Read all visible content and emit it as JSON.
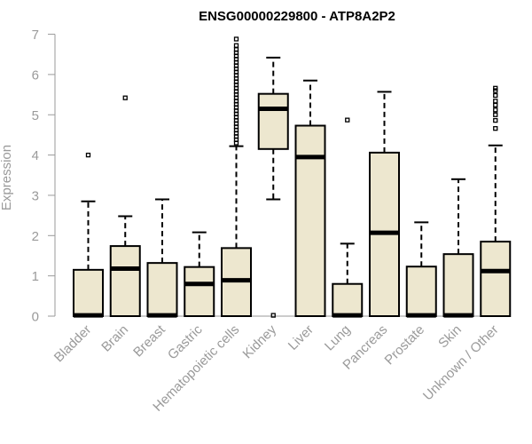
{
  "chart_data": {
    "type": "boxplot",
    "title": "ENSG00000229800 - ATP8A2P2",
    "xlabel": "",
    "ylabel": "Expression",
    "ylim": [
      0,
      7
    ],
    "yticks": [
      0,
      1,
      2,
      3,
      4,
      5,
      6,
      7
    ],
    "box_fill": "#ede7cf",
    "categories": [
      "Bladder",
      "Brain",
      "Breast",
      "Gastric",
      "Hematopoietic cells",
      "Kidney",
      "Liver",
      "Lung",
      "Pancreas",
      "Prostate",
      "Skin",
      "Unknown / Other"
    ],
    "boxes": [
      {
        "name": "Bladder",
        "whisker_low": 0,
        "q1": 0,
        "median": 0.02,
        "q3": 1.15,
        "whisker_high": 2.85,
        "outliers": [
          4.0
        ]
      },
      {
        "name": "Brain",
        "whisker_low": 0,
        "q1": 0,
        "median": 1.18,
        "q3": 1.74,
        "whisker_high": 2.48,
        "outliers": [
          5.42
        ]
      },
      {
        "name": "Breast",
        "whisker_low": 0,
        "q1": 0,
        "median": 0.02,
        "q3": 1.32,
        "whisker_high": 2.9,
        "outliers": []
      },
      {
        "name": "Gastric",
        "whisker_low": 0,
        "q1": 0,
        "median": 0.8,
        "q3": 1.22,
        "whisker_high": 2.08,
        "outliers": []
      },
      {
        "name": "Hematopoietic cells",
        "whisker_low": 0,
        "q1": 0,
        "median": 0.89,
        "q3": 1.69,
        "whisker_high": 4.22,
        "outliers": [
          4.3,
          4.38,
          4.46,
          4.54,
          4.62,
          4.7,
          4.78,
          4.86,
          4.94,
          5.02,
          5.1,
          5.18,
          5.26,
          5.34,
          5.42,
          5.5,
          5.58,
          5.66,
          5.74,
          5.82,
          5.9,
          5.98,
          6.06,
          6.14,
          6.22,
          6.3,
          6.38,
          6.46,
          6.54,
          6.62,
          6.72,
          6.88
        ]
      },
      {
        "name": "Kidney",
        "whisker_low": 2.9,
        "q1": 4.15,
        "median": 5.15,
        "q3": 5.52,
        "whisker_high": 6.42,
        "outliers": [
          0.02
        ]
      },
      {
        "name": "Liver",
        "whisker_low": 0,
        "q1": 0,
        "median": 3.95,
        "q3": 4.73,
        "whisker_high": 5.85,
        "outliers": []
      },
      {
        "name": "Lung",
        "whisker_low": 0,
        "q1": 0,
        "median": 0.02,
        "q3": 0.8,
        "whisker_high": 1.8,
        "outliers": [
          4.87
        ]
      },
      {
        "name": "Pancreas",
        "whisker_low": 0,
        "q1": 0,
        "median": 2.07,
        "q3": 4.06,
        "whisker_high": 5.57,
        "outliers": []
      },
      {
        "name": "Prostate",
        "whisker_low": 0,
        "q1": 0,
        "median": 0.02,
        "q3": 1.23,
        "whisker_high": 2.33,
        "outliers": []
      },
      {
        "name": "Skin",
        "whisker_low": 0,
        "q1": 0,
        "median": 0.02,
        "q3": 1.54,
        "whisker_high": 3.4,
        "outliers": []
      },
      {
        "name": "Unknown / Other",
        "whisker_low": 0,
        "q1": 0,
        "median": 1.12,
        "q3": 1.85,
        "whisker_high": 4.24,
        "outliers": [
          4.66,
          4.86,
          5.0,
          5.12,
          5.24,
          5.34,
          5.48,
          5.6,
          5.66
        ]
      }
    ]
  }
}
